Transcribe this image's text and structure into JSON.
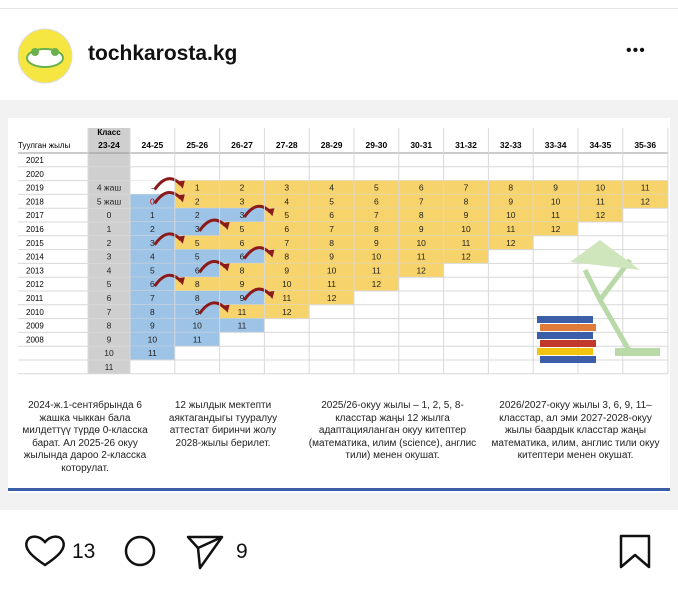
{
  "header": {
    "username": "tochkarosta.kg",
    "more": "•••"
  },
  "table": {
    "class_label": "Класс",
    "year_label": "Туулган жылы",
    "columns": [
      "23-24",
      "24-25",
      "25-26",
      "26-27",
      "27-28",
      "28-29",
      "29-30",
      "30-31",
      "31-32",
      "32-33",
      "33-34",
      "34-35",
      "35-36"
    ],
    "rows": [
      {
        "year": "2021",
        "cells": []
      },
      {
        "year": "2020",
        "cells": []
      },
      {
        "year": "2019",
        "cells": [
          "4 жаш",
          "-",
          "1",
          "2",
          "3",
          "4",
          "5",
          "6",
          "7",
          "8",
          "9",
          "10",
          "11"
        ]
      },
      {
        "year": "2018",
        "cells": [
          "5 жаш",
          "0",
          "2",
          "3",
          "4",
          "5",
          "6",
          "7",
          "8",
          "9",
          "10",
          "11",
          "12"
        ]
      },
      {
        "year": "2017",
        "cells": [
          "0",
          "1",
          "2",
          "3",
          "5",
          "6",
          "7",
          "8",
          "9",
          "10",
          "11",
          "12"
        ]
      },
      {
        "year": "2016",
        "cells": [
          "1",
          "2",
          "3",
          "5",
          "6",
          "7",
          "8",
          "9",
          "10",
          "11",
          "12"
        ]
      },
      {
        "year": "2015",
        "cells": [
          "2",
          "3",
          "5",
          "6",
          "7",
          "8",
          "9",
          "10",
          "11",
          "12"
        ]
      },
      {
        "year": "2014",
        "cells": [
          "3",
          "4",
          "5",
          "6",
          "8",
          "9",
          "10",
          "11",
          "12"
        ]
      },
      {
        "year": "2013",
        "cells": [
          "4",
          "5",
          "6",
          "8",
          "9",
          "10",
          "11",
          "12"
        ]
      },
      {
        "year": "2012",
        "cells": [
          "5",
          "6",
          "8",
          "9",
          "10",
          "11",
          "12"
        ]
      },
      {
        "year": "2011",
        "cells": [
          "6",
          "7",
          "8",
          "9",
          "11",
          "12"
        ]
      },
      {
        "year": "2010",
        "cells": [
          "7",
          "8",
          "9",
          "11",
          "12"
        ]
      },
      {
        "year": "2009",
        "cells": [
          "8",
          "9",
          "10",
          "11"
        ]
      },
      {
        "year": "2008",
        "cells": [
          "9",
          "10",
          "11"
        ]
      },
      {
        "year": null,
        "cells": [
          "10",
          "11"
        ]
      },
      {
        "year": null,
        "cells": [
          "11"
        ]
      }
    ]
  },
  "captions": [
    "2024-ж.1-сентябрында 6 жашка чыккан бала милдеттүү түрдө 0-класска барат. Ал 2025-26 окуу жылында дароо 2-класска которулат.",
    "12 жылдык мектепти аяктагандыгы тууралуу аттестат биринчи жолу 2028-жылы берилет.",
    "2025/26-окуу жылы – 1, 2, 5, 8-класстар жаңы 12 жылга адаптацияланган окуу китептер (математика, илим (science), англис тили) менен окушат.",
    "2026/2027-окуу жылы 3, 6, 9, 11–класстар, ал эми 2027-2028-окуу жылы баардык класстар жаңы математика, илим, англис тили окуу китептери менен окушат."
  ],
  "actions": {
    "likes": "13",
    "shares": "9"
  }
}
